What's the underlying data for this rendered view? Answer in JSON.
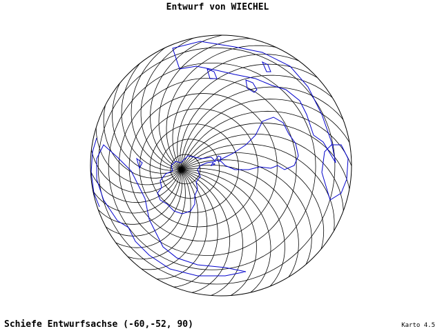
{
  "header": {
    "title": "Entwurf von WIECHEL"
  },
  "footer": {
    "caption": "Schiefe Entwurfsachse (-60,-52, 90)",
    "version": "Karto 4.5"
  }
}
